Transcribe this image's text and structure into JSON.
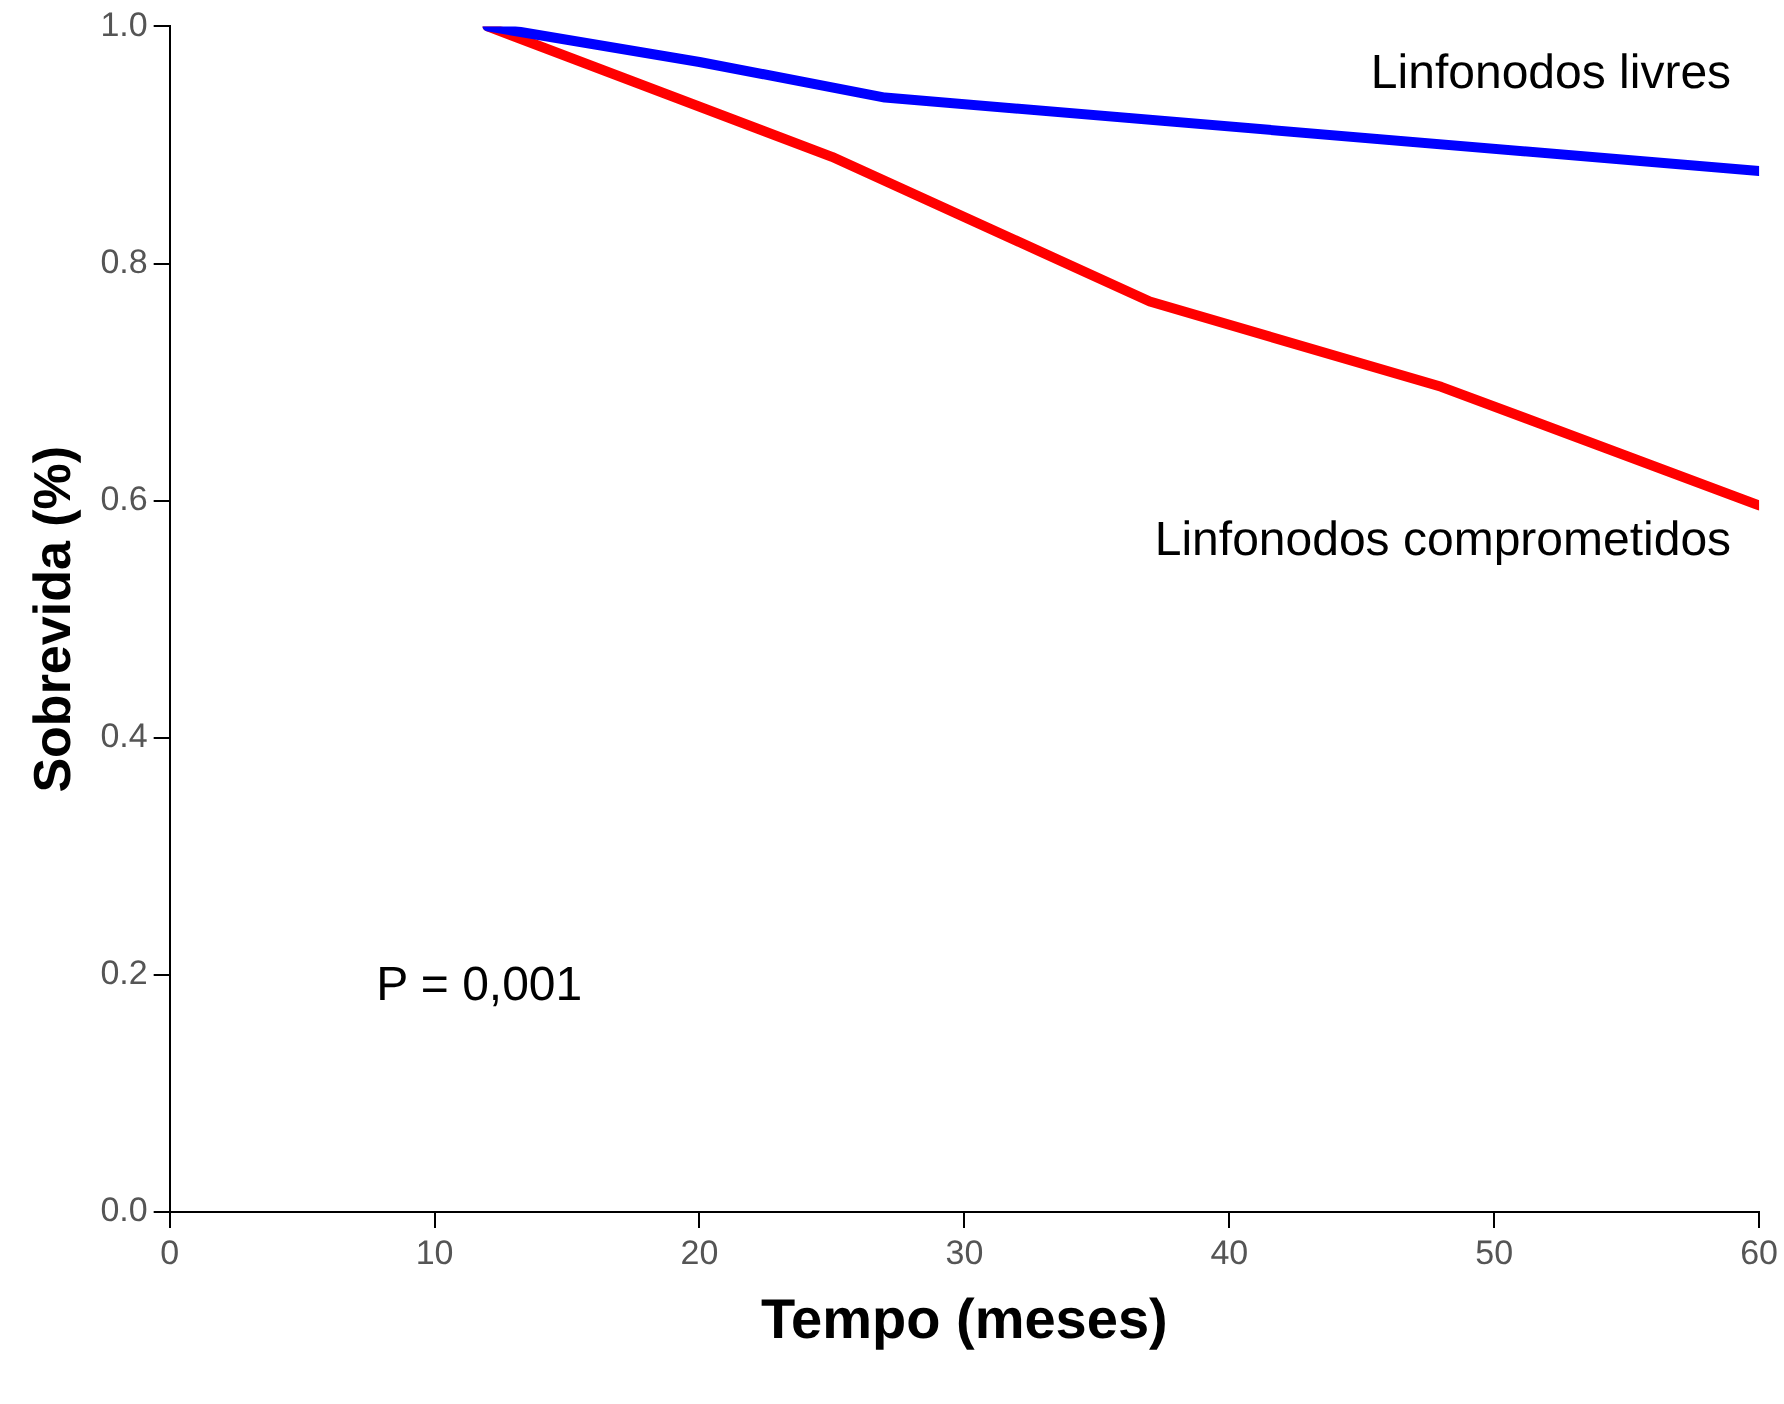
{
  "chart_data": {
    "type": "line",
    "xlabel": "Tempo (meses)",
    "ylabel": "Sobrevida (%)",
    "xlim": [
      0,
      60
    ],
    "xticks": [
      0,
      10,
      20,
      30,
      40,
      50,
      60
    ],
    "ylim": [
      0,
      1
    ],
    "yticks": [
      {
        "value": 0,
        "label": "0.0"
      },
      0.2,
      0.4,
      0.6,
      0.8,
      {
        "value": 1,
        "label": "1.0"
      }
    ],
    "series": [
      {
        "name": "Linfonodos livres",
        "color": "#0000ff",
        "x": [
          12,
          20,
          27,
          60
        ],
        "values": [
          1.0,
          0.97,
          0.94,
          0.878
        ]
      },
      {
        "name": "Linfonodos comprometidos",
        "color": "#ff0000",
        "x": [
          12,
          25,
          37,
          48,
          60
        ],
        "values": [
          1.0,
          0.89,
          0.768,
          0.696,
          0.596
        ]
      }
    ],
    "annotations": [
      "P = 0,001"
    ],
    "grid": false,
    "legend": false,
    "marker": "none",
    "line_style": "solid"
  }
}
